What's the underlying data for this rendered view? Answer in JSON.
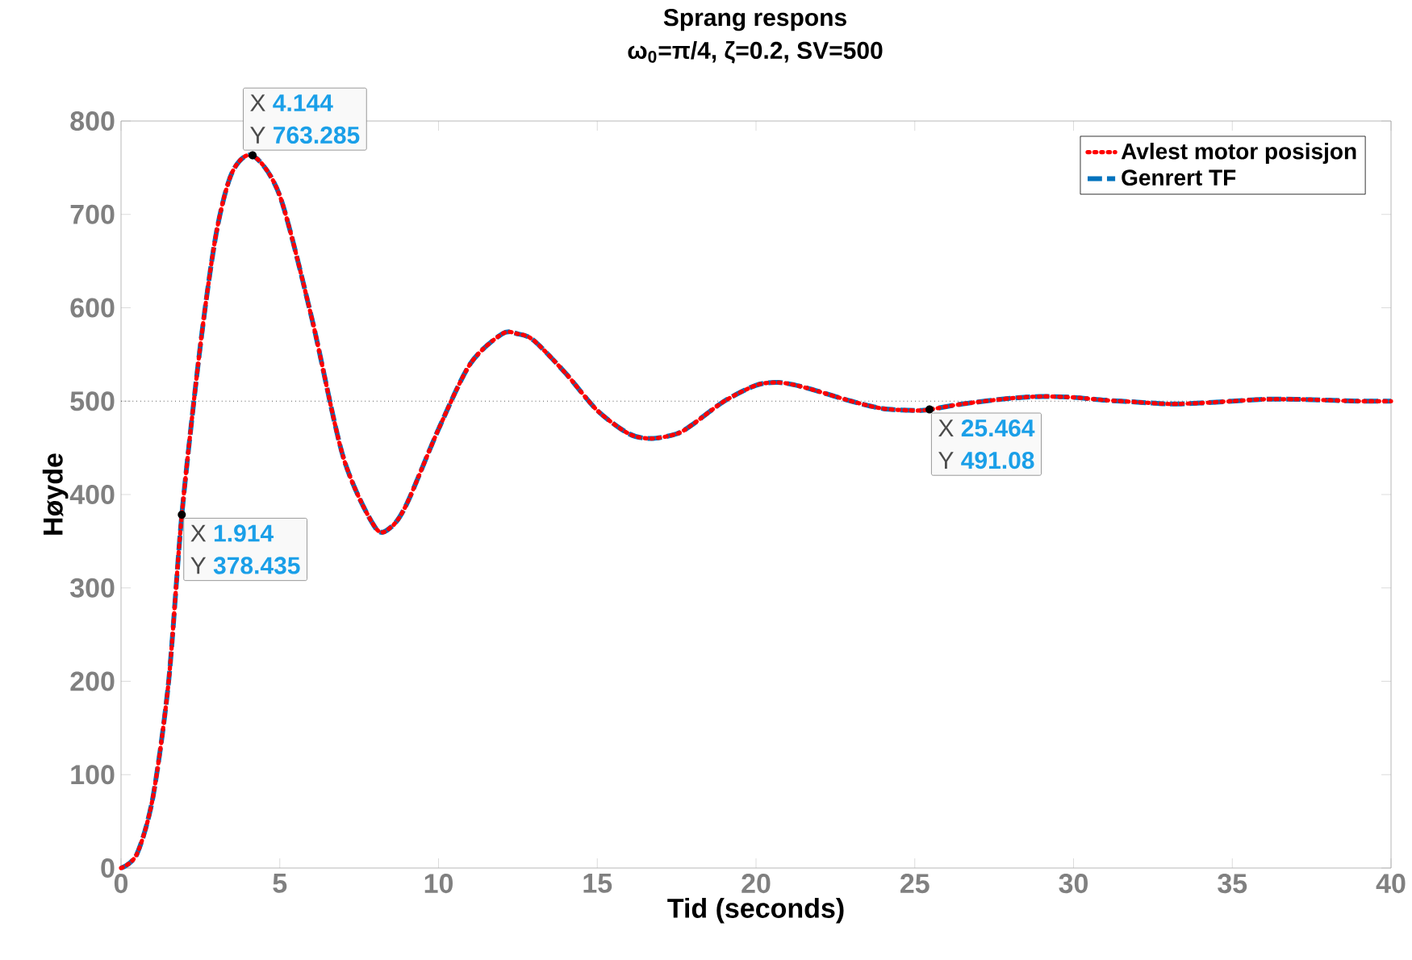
{
  "chart_data": {
    "type": "line",
    "title": "Sprang respons",
    "subtitle": "ω$_{0}$=π/4,     ζ=0.2,     SV=500",
    "xlabel": "Tid (seconds)",
    "ylabel": "Høyde",
    "xlim": [
      0,
      40
    ],
    "ylim": [
      0,
      800
    ],
    "xticks": [
      0,
      5,
      10,
      15,
      20,
      25,
      30,
      35,
      40
    ],
    "yticks": [
      0,
      100,
      200,
      300,
      400,
      500,
      600,
      700,
      800
    ],
    "grid": false,
    "legend": "top right",
    "ref_lines": [
      {
        "axis": "y",
        "value": 500,
        "color": "#000000",
        "line_style": "dotted"
      }
    ],
    "annotations": [
      {
        "text": "X **1.914**",
        "x": 1.914,
        "y": 378.435
      },
      {
        "text": "Y **378.435**",
        "x": 1.914,
        "y": 378.435
      },
      {
        "text": "X **4.144**",
        "x": 4.144,
        "y": 763.285
      },
      {
        "text": "Y **763.285**",
        "x": 4.144,
        "y": 763.285
      },
      {
        "text": "X **25.464**",
        "x": 25.464,
        "y": 491.08
      },
      {
        "text": "Y **491.08**",
        "x": 25.464,
        "y": 491.08
      }
    ],
    "x": [
      0,
      0.5,
      1,
      1.5,
      1.914,
      2.5,
      3,
      3.5,
      4.144,
      5,
      6,
      7,
      8,
      8.5,
      9,
      10,
      11,
      12,
      12.5,
      13,
      14,
      15,
      16,
      16.7,
      17.5,
      18,
      19,
      20,
      20.7,
      21.5,
      23,
      24,
      25,
      25.464,
      26.5,
      28,
      29,
      30,
      31,
      32,
      33,
      34,
      35,
      36,
      37,
      38,
      39,
      40
    ],
    "series": [
      {
        "name": "Genrert TF",
        "color": "#0072bd",
        "line_style": "dashed",
        "values": [
          0,
          15,
          75,
          200,
          378,
          560,
          680,
          745,
          763,
          720,
          590,
          440,
          365,
          365,
          390,
          470,
          540,
          572,
          572,
          565,
          530,
          490,
          465,
          460,
          465,
          475,
          500,
          517,
          520,
          515,
          500,
          492,
          490,
          491,
          497,
          503,
          505,
          504,
          501,
          499,
          497,
          498,
          500,
          502,
          502,
          501,
          500,
          500
        ]
      },
      {
        "name": "Avlest motor posisjon",
        "color": "#ff0000",
        "line_style": "dotted",
        "values": [
          0,
          15,
          75,
          200,
          378,
          560,
          680,
          745,
          763,
          720,
          590,
          440,
          365,
          365,
          390,
          470,
          540,
          572,
          572,
          565,
          530,
          490,
          465,
          460,
          465,
          475,
          500,
          517,
          520,
          515,
          500,
          492,
          490,
          491,
          497,
          503,
          505,
          504,
          501,
          499,
          497,
          498,
          500,
          502,
          502,
          501,
          500,
          500
        ]
      }
    ]
  }
}
